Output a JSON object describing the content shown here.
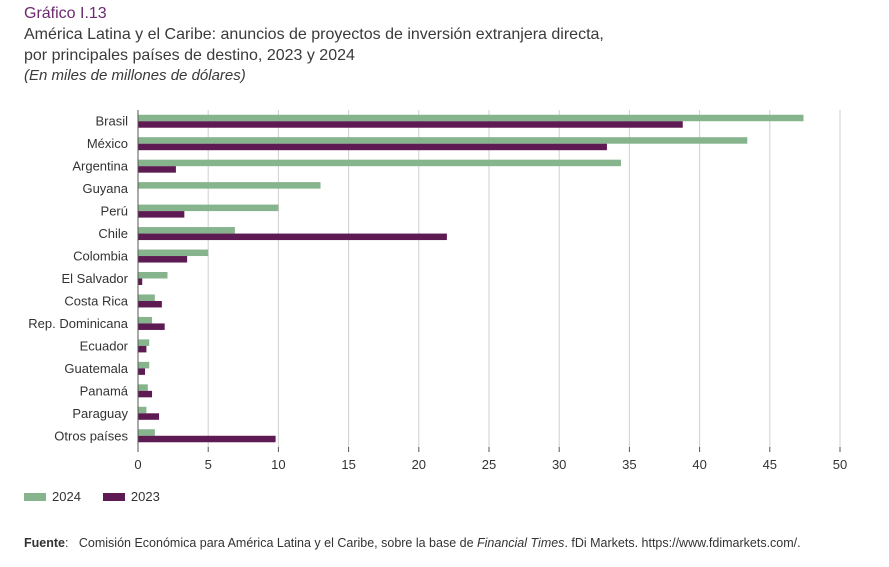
{
  "header": {
    "figure_number": "Gráfico I.13",
    "title_line1": "América Latina y el Caribe: anuncios de proyectos de inversión extranjera directa,",
    "title_line2": "por principales países de destino, 2023 y 2024",
    "units": "(En miles de millones de dólares)"
  },
  "chart_data": {
    "type": "bar",
    "orientation": "horizontal",
    "categories": [
      "Brasil",
      "México",
      "Argentina",
      "Guyana",
      "Perú",
      "Chile",
      "Colombia",
      "El Salvador",
      "Costa Rica",
      "Rep. Dominicana",
      "Ecuador",
      "Guatemala",
      "Panamá",
      "Paraguay",
      "Otros países"
    ],
    "series": [
      {
        "name": "2024",
        "color": "#86b48c",
        "values": [
          47.4,
          43.4,
          34.4,
          13.0,
          10.0,
          6.9,
          5.0,
          2.1,
          1.2,
          1.0,
          0.8,
          0.8,
          0.7,
          0.6,
          1.2
        ]
      },
      {
        "name": "2023",
        "color": "#5e1a52",
        "values": [
          38.8,
          33.4,
          2.7,
          0.0,
          3.3,
          22.0,
          3.5,
          0.3,
          1.7,
          1.9,
          0.6,
          0.5,
          1.0,
          1.5,
          9.8
        ]
      }
    ],
    "xlim": [
      0,
      50
    ],
    "xticks": [
      0,
      5,
      10,
      15,
      20,
      25,
      30,
      35,
      40,
      45,
      50
    ],
    "grid": true,
    "legend": "bottom-left"
  },
  "legend": {
    "items": [
      {
        "label": "2024",
        "color": "#86b48c"
      },
      {
        "label": "2023",
        "color": "#5e1a52"
      }
    ]
  },
  "source": {
    "label": "Fuente",
    "text_before": "Comisión Económica para América Latina y el Caribe, sobre la base de ",
    "italic": "Financial Times",
    "text_after": ". fDi Markets. https://www.fdimarkets.com/."
  }
}
